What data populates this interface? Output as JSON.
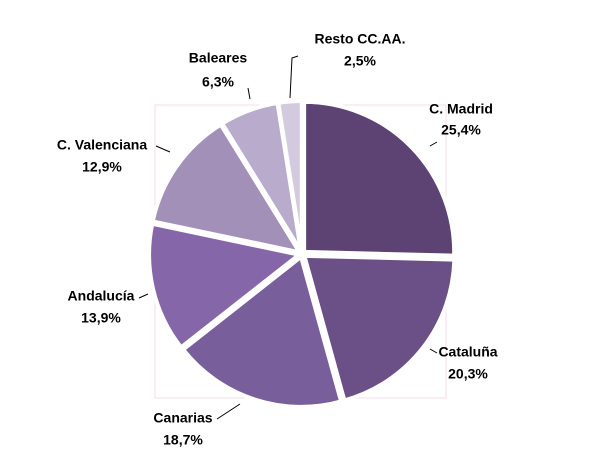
{
  "chart_data": {
    "type": "pie",
    "categories": [
      "C. Madrid",
      "Cataluña",
      "Canarias",
      "Andalucía",
      "C. Valenciana",
      "Baleares",
      "Resto CC.AA."
    ],
    "values": [
      25.4,
      20.3,
      18.7,
      13.9,
      12.9,
      6.3,
      2.5
    ],
    "value_labels": [
      "25,4%",
      "20,3%",
      "18,7%",
      "13,9%",
      "12,9%",
      "6,3%",
      "2,5%"
    ],
    "colors": [
      "#5c4373",
      "#6b5088",
      "#795e9c",
      "#8566a8",
      "#a290b9",
      "#b9abcb",
      "#d3cadf"
    ]
  }
}
